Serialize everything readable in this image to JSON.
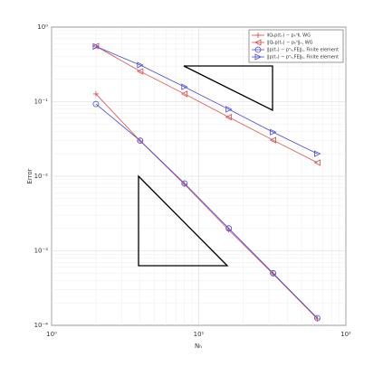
{
  "chart_data": {
    "type": "line",
    "x_label": "Nₕ",
    "y_label": "Error",
    "x": [
      2,
      4,
      8,
      16,
      32,
      64
    ],
    "series": [
      {
        "name": "⦀Qₕp(tₙ) − pₕⁿ⦀, WG",
        "color": "#e04848",
        "marker": "plus",
        "values": [
          0.127,
          0.0297,
          0.0078,
          0.0019,
          0.00049,
          0.000122
        ]
      },
      {
        "name": "‖Qₕp(tₙ) − pₕⁿ‖ₕ, WG",
        "color": "#e04848",
        "marker": "triangle-left",
        "values": [
          0.556,
          0.255,
          0.127,
          0.062,
          0.0305,
          0.0152
        ]
      },
      {
        "name": "‖p(tₙ) − pⁿₕ,FE‖₁, Finite element",
        "color": "#4848d8",
        "marker": "circle",
        "values": [
          0.093,
          0.03,
          0.008,
          0.002,
          0.0005,
          0.000125
        ]
      },
      {
        "name": "‖p(tₙ) − pⁿₕ,FE‖₀, Finite element",
        "color": "#4848d8",
        "marker": "triangle-right",
        "values": [
          0.55,
          0.31,
          0.158,
          0.079,
          0.039,
          0.02
        ]
      }
    ],
    "xscale": "log",
    "yscale": "log",
    "xlim": [
      1,
      100
    ],
    "ylim": [
      0.0001,
      1
    ],
    "xticks": [
      {
        "value": 1,
        "label": "10⁰"
      },
      {
        "value": 10,
        "label": "10¹"
      },
      {
        "value": 100,
        "label": "10²"
      }
    ],
    "yticks": [
      {
        "value": 0.0001,
        "label": "10⁻⁴"
      },
      {
        "value": 0.001,
        "label": "10⁻³"
      },
      {
        "value": 0.01,
        "label": "10⁻²"
      },
      {
        "value": 0.1,
        "label": "10⁻¹"
      },
      {
        "value": 1,
        "label": "10⁰"
      }
    ],
    "grid": true,
    "legend": "upper right"
  }
}
